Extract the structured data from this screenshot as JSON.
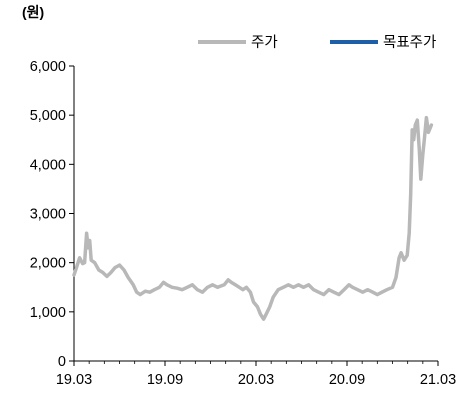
{
  "chart_data": {
    "type": "line",
    "unit_label": "(원)",
    "title": "",
    "xlabel": "",
    "ylabel": "",
    "ylim": [
      0,
      6000
    ],
    "yticks": [
      0,
      1000,
      2000,
      3000,
      4000,
      5000,
      6000
    ],
    "ytick_labels": [
      "0",
      "1,000",
      "2,000",
      "3,000",
      "4,000",
      "5,000",
      "6,000"
    ],
    "xticks": [
      "19.03",
      "19.09",
      "20.03",
      "20.09",
      "21.03"
    ],
    "xlim": [
      "2019-03",
      "2021-03"
    ],
    "legend_position": "top-right",
    "grid": false,
    "series": [
      {
        "name": "주가",
        "color": "#b8b8b8",
        "points": [
          [
            "2019-03-01",
            1750
          ],
          [
            "2019-03-06",
            1900
          ],
          [
            "2019-03-12",
            2100
          ],
          [
            "2019-03-18",
            1980
          ],
          [
            "2019-03-22",
            2000
          ],
          [
            "2019-03-26",
            2600
          ],
          [
            "2019-03-29",
            2300
          ],
          [
            "2019-04-02",
            2450
          ],
          [
            "2019-04-05",
            2050
          ],
          [
            "2019-04-12",
            2000
          ],
          [
            "2019-04-20",
            1850
          ],
          [
            "2019-04-28",
            1800
          ],
          [
            "2019-05-06",
            1720
          ],
          [
            "2019-05-14",
            1800
          ],
          [
            "2019-05-22",
            1900
          ],
          [
            "2019-06-01",
            1950
          ],
          [
            "2019-06-10",
            1850
          ],
          [
            "2019-06-18",
            1700
          ],
          [
            "2019-06-28",
            1550
          ],
          [
            "2019-07-05",
            1400
          ],
          [
            "2019-07-12",
            1350
          ],
          [
            "2019-07-22",
            1420
          ],
          [
            "2019-08-01",
            1400
          ],
          [
            "2019-08-10",
            1450
          ],
          [
            "2019-08-20",
            1500
          ],
          [
            "2019-08-28",
            1600
          ],
          [
            "2019-09-05",
            1550
          ],
          [
            "2019-09-15",
            1500
          ],
          [
            "2019-09-25",
            1480
          ],
          [
            "2019-10-05",
            1450
          ],
          [
            "2019-10-15",
            1500
          ],
          [
            "2019-10-25",
            1550
          ],
          [
            "2019-11-05",
            1450
          ],
          [
            "2019-11-15",
            1400
          ],
          [
            "2019-11-25",
            1500
          ],
          [
            "2019-12-05",
            1550
          ],
          [
            "2019-12-15",
            1500
          ],
          [
            "2019-12-28",
            1550
          ],
          [
            "2020-01-06",
            1650
          ],
          [
            "2020-01-12",
            1600
          ],
          [
            "2020-01-20",
            1550
          ],
          [
            "2020-01-28",
            1500
          ],
          [
            "2020-02-05",
            1450
          ],
          [
            "2020-02-12",
            1500
          ],
          [
            "2020-02-20",
            1400
          ],
          [
            "2020-02-26",
            1200
          ],
          [
            "2020-03-04",
            1100
          ],
          [
            "2020-03-10",
            950
          ],
          [
            "2020-03-16",
            850
          ],
          [
            "2020-03-21",
            950
          ],
          [
            "2020-03-28",
            1100
          ],
          [
            "2020-04-05",
            1300
          ],
          [
            "2020-04-15",
            1450
          ],
          [
            "2020-04-25",
            1500
          ],
          [
            "2020-05-05",
            1550
          ],
          [
            "2020-05-15",
            1500
          ],
          [
            "2020-05-25",
            1550
          ],
          [
            "2020-06-05",
            1500
          ],
          [
            "2020-06-15",
            1550
          ],
          [
            "2020-06-25",
            1450
          ],
          [
            "2020-07-05",
            1400
          ],
          [
            "2020-07-15",
            1350
          ],
          [
            "2020-07-25",
            1450
          ],
          [
            "2020-08-05",
            1400
          ],
          [
            "2020-08-15",
            1350
          ],
          [
            "2020-08-25",
            1450
          ],
          [
            "2020-09-05",
            1550
          ],
          [
            "2020-09-12",
            1500
          ],
          [
            "2020-09-22",
            1450
          ],
          [
            "2020-10-02",
            1400
          ],
          [
            "2020-10-12",
            1450
          ],
          [
            "2020-10-22",
            1400
          ],
          [
            "2020-11-01",
            1350
          ],
          [
            "2020-11-10",
            1400
          ],
          [
            "2020-11-20",
            1450
          ],
          [
            "2020-12-01",
            1500
          ],
          [
            "2020-12-08",
            1700
          ],
          [
            "2020-12-14",
            2100
          ],
          [
            "2020-12-18",
            2200
          ],
          [
            "2020-12-24",
            2050
          ],
          [
            "2020-12-30",
            2150
          ],
          [
            "2021-01-04",
            2600
          ],
          [
            "2021-01-07",
            3400
          ],
          [
            "2021-01-10",
            4700
          ],
          [
            "2021-01-13",
            4500
          ],
          [
            "2021-01-16",
            4800
          ],
          [
            "2021-01-20",
            4900
          ],
          [
            "2021-01-24",
            4300
          ],
          [
            "2021-01-27",
            3700
          ],
          [
            "2021-01-31",
            4200
          ],
          [
            "2021-02-04",
            4500
          ],
          [
            "2021-02-08",
            4950
          ],
          [
            "2021-02-12",
            4650
          ],
          [
            "2021-02-18",
            4800
          ]
        ]
      },
      {
        "name": "목표주가",
        "color": "#1f5fa8",
        "points": []
      }
    ]
  }
}
